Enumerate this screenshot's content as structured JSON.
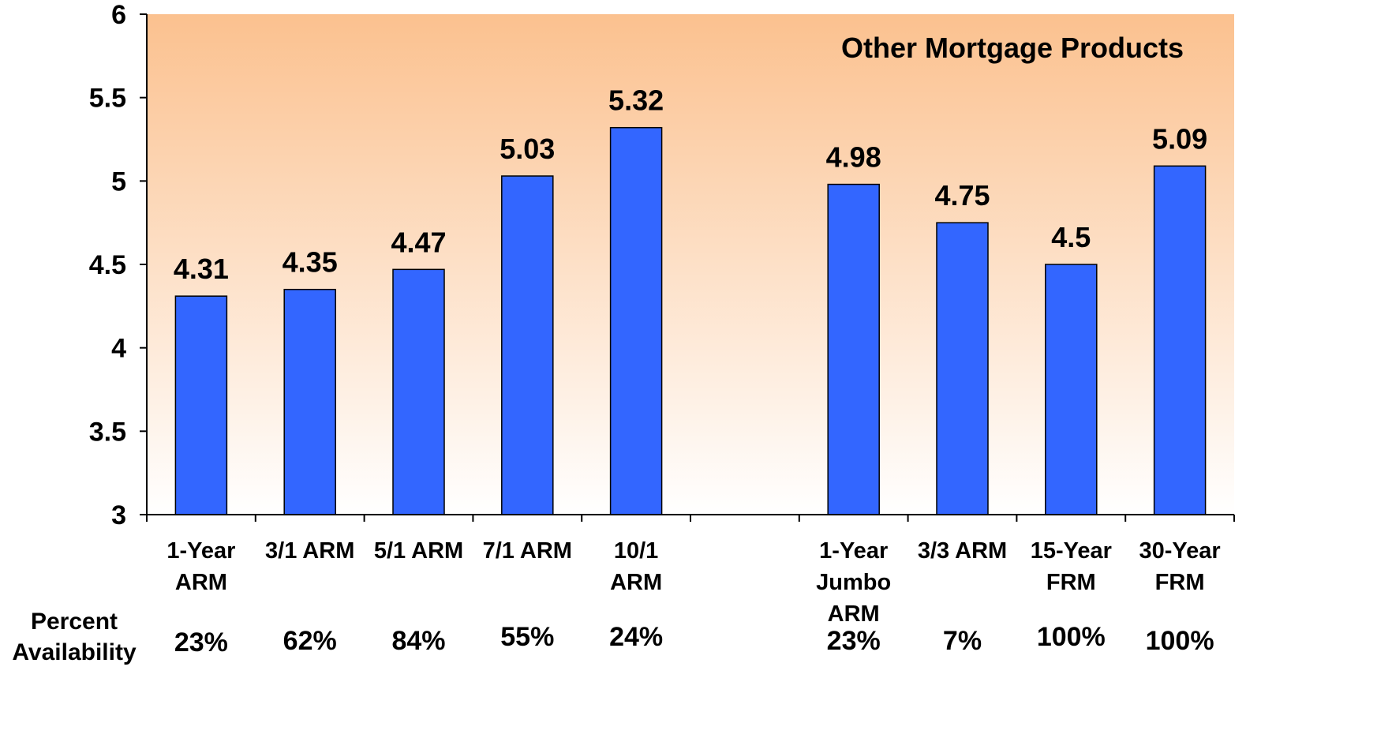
{
  "chart_data": {
    "type": "bar",
    "title": "",
    "panel_title": "Other Mortgage Products",
    "xlabel": "",
    "ylabel": "",
    "ylim": [
      3,
      6
    ],
    "yticks": [
      "3",
      "3.5",
      "4",
      "4.5",
      "5",
      "5.5",
      "6"
    ],
    "grid": false,
    "legend": "none",
    "colors": {
      "bar": "#3366FF",
      "bar_stroke": "#000000",
      "bg_top": "#FBC18F",
      "bg_bottom": "#FFFFFF"
    },
    "categories": [
      {
        "lines": [
          "1-Year",
          "ARM"
        ],
        "value": 4.31,
        "value_label": "4.31",
        "availability": "23%"
      },
      {
        "lines": [
          "3/1 ARM"
        ],
        "value": 4.35,
        "value_label": "4.35",
        "availability": "62%"
      },
      {
        "lines": [
          "5/1 ARM"
        ],
        "value": 4.47,
        "value_label": "4.47",
        "availability": "84%"
      },
      {
        "lines": [
          "7/1 ARM"
        ],
        "value": 5.03,
        "value_label": "5.03",
        "availability": "55%"
      },
      {
        "lines": [
          "10/1",
          "ARM"
        ],
        "value": 5.32,
        "value_label": "5.32",
        "availability": "24%"
      },
      {
        "lines": [],
        "value": null,
        "value_label": "",
        "availability": ""
      },
      {
        "lines": [
          "1-Year",
          "Jumbo",
          "ARM"
        ],
        "value": 4.98,
        "value_label": "4.98",
        "availability": "23%"
      },
      {
        "lines": [
          "3/3 ARM"
        ],
        "value": 4.75,
        "value_label": "4.75",
        "availability": "7%"
      },
      {
        "lines": [
          "15-Year",
          "FRM"
        ],
        "value": 4.5,
        "value_label": "4.5",
        "availability": "100%"
      },
      {
        "lines": [
          "30-Year",
          "FRM"
        ],
        "value": 5.09,
        "value_label": "5.09",
        "availability": "100%"
      }
    ],
    "percent_availability_label": [
      "Percent",
      "Availability"
    ]
  }
}
